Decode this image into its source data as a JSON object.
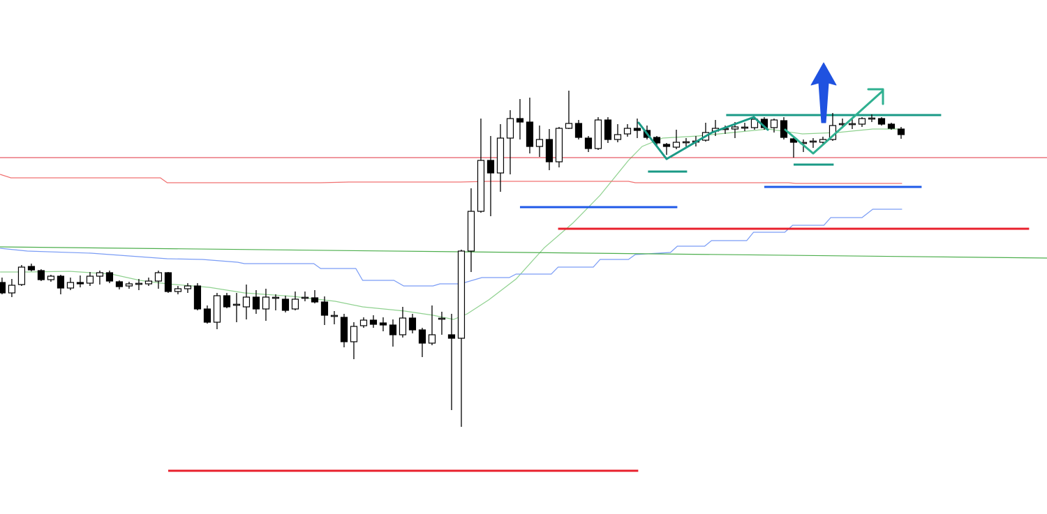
{
  "chart_data": {
    "type": "candlestick",
    "xlim": [
      -0.21,
      106.93
    ],
    "ylim": [
      0,
      737
    ],
    "grid": false,
    "up_color": "#ffffff",
    "down_color": "#000000",
    "wick_color": "#000000",
    "open": [
      332,
      317,
      329,
      355,
      349,
      336,
      341,
      324,
      332,
      331,
      341,
      346,
      333,
      327,
      330,
      330,
      334,
      346,
      319,
      323,
      327,
      294,
      275,
      313,
      300,
      297,
      311,
      294,
      310,
      308,
      294,
      310,
      310,
      304,
      284,
      282,
      247,
      270,
      278,
      274,
      271,
      257,
      281,
      264,
      245,
      280,
      257,
      252,
      377,
      434,
      507,
      489,
      539,
      567,
      562,
      527,
      537,
      505,
      553,
      560,
      539,
      524,
      565,
      537,
      545,
      553,
      550,
      540,
      530,
      526,
      533,
      534,
      536,
      549,
      552,
      552,
      554,
      554,
      566,
      554,
      564,
      538,
      532,
      534,
      533,
      537,
      559,
      559,
      559,
      567,
      567,
      559,
      552
    ],
    "high": [
      339,
      337,
      357,
      359,
      351,
      343,
      343,
      339,
      342,
      347,
      349,
      349,
      335,
      333,
      337,
      339,
      349,
      347,
      327,
      331,
      331,
      299,
      317,
      317,
      317,
      329,
      321,
      323,
      315,
      313,
      319,
      319,
      321,
      312,
      291,
      287,
      275,
      282,
      285,
      282,
      279,
      297,
      287,
      267,
      299,
      290,
      287,
      379,
      467,
      567,
      542,
      559,
      579,
      595,
      597,
      557,
      552,
      555,
      607,
      565,
      542,
      569,
      569,
      559,
      559,
      567,
      557,
      542,
      532,
      551,
      539,
      542,
      561,
      565,
      557,
      562,
      561,
      569,
      569,
      567,
      569,
      541,
      537,
      539,
      541,
      575,
      567,
      567,
      569,
      573,
      569,
      561,
      555
    ],
    "low": [
      315,
      311,
      327,
      348,
      334,
      333,
      315,
      321,
      325,
      327,
      329,
      331,
      322,
      323,
      321,
      327,
      323,
      317,
      315,
      317,
      292,
      273,
      265,
      295,
      275,
      279,
      287,
      277,
      292,
      289,
      292,
      305,
      302,
      271,
      272,
      239,
      222,
      267,
      267,
      262,
      240,
      253,
      259,
      225,
      242,
      257,
      149,
      125,
      347,
      432,
      427,
      462,
      487,
      537,
      517,
      512,
      493,
      497,
      552,
      537,
      519,
      522,
      532,
      533,
      541,
      539,
      537,
      527,
      515,
      523,
      527,
      527,
      534,
      542,
      545,
      539,
      549,
      551,
      551,
      547,
      537,
      511,
      519,
      525,
      531,
      535,
      553,
      552,
      555,
      562,
      557,
      551,
      538
    ],
    "close": [
      317,
      328,
      354,
      350,
      336,
      341,
      324,
      332,
      330,
      341,
      346,
      334,
      326,
      330,
      330,
      334,
      346,
      319,
      323,
      327,
      294,
      275,
      313,
      297,
      300,
      311,
      294,
      311,
      310,
      292,
      308,
      310,
      304,
      285,
      284,
      247,
      269,
      278,
      272,
      271,
      257,
      281,
      264,
      245,
      257,
      280,
      252,
      377,
      434,
      507,
      489,
      539,
      567,
      562,
      527,
      537,
      505,
      553,
      560,
      540,
      524,
      565,
      537,
      544,
      553,
      550,
      540,
      532,
      527,
      533,
      533,
      534,
      547,
      553,
      552,
      555,
      554,
      566,
      554,
      565,
      540,
      533,
      532,
      534,
      537,
      557,
      559,
      559,
      567,
      567,
      559,
      553,
      544
    ],
    "lines": [
      {
        "color": "#8fd18f",
        "width": 1.2,
        "x": [
          -0.2,
          2.6,
          6.9,
          11.2,
          14.1,
          16.9,
          21.2,
          24.8,
          29.8,
          34.1,
          36.9,
          41.2,
          44.1,
          46.2,
          47.6,
          49.8,
          52.6,
          55.5,
          58.4,
          61.2,
          64.1,
          65.5,
          67.6,
          71.2,
          74.8,
          78.4,
          81.9,
          85.5,
          89.1,
          91.9
        ],
        "values": [
          347,
          347,
          348,
          344,
          335,
          330,
          325,
          317,
          312,
          305,
          297,
          291,
          285,
          279,
          287,
          307,
          337,
          382,
          417,
          457,
          507,
          527,
          539,
          542,
          547,
          552,
          545,
          547,
          552,
          552
        ]
      },
      {
        "color": "#7a9cf5",
        "width": 1.2,
        "x": [
          -0.2,
          2.6,
          9.1,
          16.9,
          20.5,
          24.1,
          24.8,
          31.9,
          32.6,
          36.2,
          36.9,
          40.1,
          41.1,
          44.1,
          44.8,
          46.9,
          49.1,
          51.9,
          52.6,
          56.2,
          56.9,
          60.5,
          61.2,
          64.1,
          64.8,
          68.4,
          69.1,
          71.9,
          72.6,
          76.2,
          76.9,
          80.1,
          80.9,
          84.1,
          84.8,
          88,
          89.1,
          92.1
        ],
        "values": [
          381,
          377,
          374,
          366,
          365,
          361,
          359,
          359,
          352,
          352,
          335,
          335,
          327,
          327,
          330,
          330,
          339,
          339,
          344,
          344,
          354,
          354,
          365,
          365,
          372,
          375,
          384,
          384,
          392,
          392,
          404,
          404,
          414,
          414,
          425,
          425,
          437,
          437
        ]
      },
      {
        "color": "#f07070",
        "width": 1.2,
        "x": [
          -0.2,
          0.9,
          16.2,
          16.9,
          32.6,
          35.5,
          46.9,
          49.8,
          64.1,
          64.8,
          80.5,
          81.2,
          92.1
        ],
        "values": [
          487,
          482,
          482,
          475,
          475,
          476,
          476,
          477,
          477,
          475,
          475,
          474,
          474
        ]
      },
      {
        "color": "#e0303c",
        "width": 1,
        "x": [
          -0.21,
          106.93
        ],
        "values": [
          511,
          511
        ]
      },
      {
        "color": "#4cae4c",
        "width": 1.2,
        "x": [
          -0.21,
          106.93
        ],
        "values": [
          383,
          367
        ]
      },
      {
        "color": "#e8202c",
        "width": 3,
        "x": [
          17.0,
          65.1
        ],
        "values": [
          62,
          62
        ]
      },
      {
        "color": "#e8202c",
        "width": 3,
        "x": [
          56.9,
          105.1
        ],
        "values": [
          409,
          409
        ]
      },
      {
        "color": "#1f5ae8",
        "width": 3,
        "x": [
          53.0,
          69.1
        ],
        "values": [
          440,
          440
        ]
      },
      {
        "color": "#1f5ae8",
        "width": 3,
        "x": [
          78.0,
          94.1
        ],
        "values": [
          469,
          469
        ]
      },
      {
        "color": "#1a9a86",
        "width": 3,
        "x": [
          74.1,
          96.1
        ],
        "values": [
          572,
          572
        ]
      },
      {
        "color": "#1a9a86",
        "width": 3,
        "x": [
          66.1,
          70.1
        ],
        "values": [
          491,
          491
        ]
      },
      {
        "color": "#1a9a86",
        "width": 3,
        "x": [
          81.0,
          85.1
        ],
        "values": [
          501,
          501
        ]
      }
    ]
  }
}
